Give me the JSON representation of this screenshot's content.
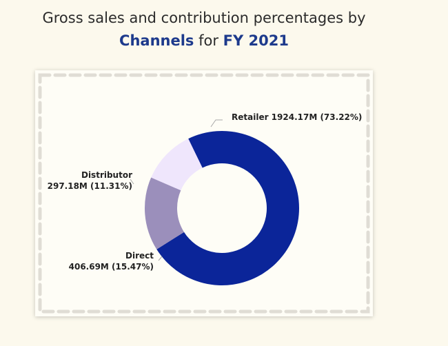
{
  "title": {
    "line1": "Gross sales and contribution percentages by",
    "channels": "Channels",
    "for": "for",
    "fy": "FY 2021"
  },
  "chart_data": {
    "type": "pie",
    "donut": true,
    "units": "M",
    "slices": [
      {
        "name": "Retailer",
        "value": 1924.17,
        "percent": 73.22,
        "color": "#0b2599"
      },
      {
        "name": "Direct",
        "value": 406.69,
        "percent": 15.47,
        "color": "#9b8fbb"
      },
      {
        "name": "Distributor",
        "value": 297.18,
        "percent": 11.31,
        "color": "#efe6fc"
      }
    ],
    "labels": {
      "retailer": "Retailer 1924.17M (73.22%)",
      "direct_name": "Direct",
      "direct_value": "406.69M (15.47%)",
      "distributor_name": "Distributor",
      "distributor_value": "297.18M (11.31%)"
    }
  }
}
